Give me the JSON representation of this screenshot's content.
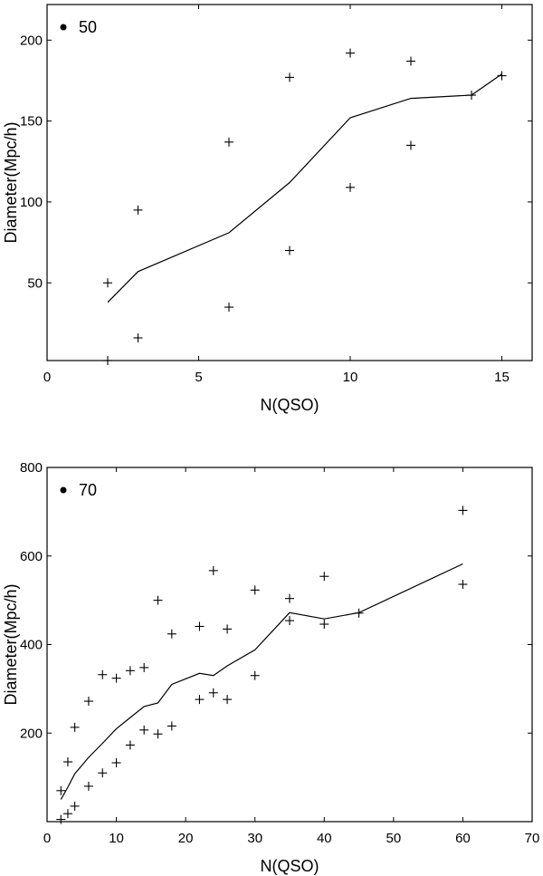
{
  "chart_data": [
    {
      "type": "scatter",
      "legend_label": "50",
      "legend_position": "top-left",
      "xlabel": "N(QSO)",
      "ylabel": "Diameter(Mpc/h)",
      "xlim": [
        0,
        16
      ],
      "ylim": [
        2,
        222
      ],
      "xticks": [
        0,
        5,
        10,
        15
      ],
      "yticks": [
        50,
        100,
        150,
        200
      ],
      "points": [
        [
          2,
          50
        ],
        [
          2,
          2
        ],
        [
          3,
          95
        ],
        [
          3,
          16
        ],
        [
          6,
          137
        ],
        [
          6,
          35
        ],
        [
          8,
          177
        ],
        [
          8,
          70
        ],
        [
          10,
          192
        ],
        [
          10,
          109
        ],
        [
          12,
          187
        ],
        [
          12,
          135
        ],
        [
          14,
          166
        ],
        [
          15,
          178
        ]
      ],
      "mean_line": [
        [
          2,
          38
        ],
        [
          3,
          57
        ],
        [
          6,
          81
        ],
        [
          8,
          112
        ],
        [
          10,
          152
        ],
        [
          12,
          164
        ],
        [
          14,
          166
        ],
        [
          15,
          179
        ]
      ]
    },
    {
      "type": "scatter",
      "legend_label": "70",
      "legend_position": "top-left",
      "xlabel": "N(QSO)",
      "ylabel": "Diameter(Mpc/h)",
      "xlim": [
        0,
        70
      ],
      "ylim": [
        0,
        800
      ],
      "xticks": [
        0,
        10,
        20,
        30,
        40,
        50,
        60,
        70
      ],
      "yticks": [
        200,
        400,
        600,
        800
      ],
      "points": [
        [
          2,
          70
        ],
        [
          2,
          5
        ],
        [
          3,
          135
        ],
        [
          3,
          18
        ],
        [
          4,
          213
        ],
        [
          4,
          35
        ],
        [
          6,
          272
        ],
        [
          6,
          80
        ],
        [
          8,
          332
        ],
        [
          8,
          110
        ],
        [
          10,
          324
        ],
        [
          10,
          133
        ],
        [
          12,
          341
        ],
        [
          12,
          173
        ],
        [
          14,
          348
        ],
        [
          14,
          207
        ],
        [
          16,
          500
        ],
        [
          16,
          198
        ],
        [
          18,
          424
        ],
        [
          18,
          216
        ],
        [
          22,
          441
        ],
        [
          22,
          276
        ],
        [
          24,
          567
        ],
        [
          24,
          291
        ],
        [
          26,
          435
        ],
        [
          26,
          276
        ],
        [
          30,
          523
        ],
        [
          30,
          330
        ],
        [
          35,
          504
        ],
        [
          35,
          454
        ],
        [
          40,
          554
        ],
        [
          40,
          446
        ],
        [
          45,
          471
        ],
        [
          60,
          703
        ],
        [
          60,
          536
        ]
      ],
      "mean_line": [
        [
          2,
          50
        ],
        [
          3,
          78
        ],
        [
          4,
          108
        ],
        [
          6,
          145
        ],
        [
          8,
          177
        ],
        [
          10,
          210
        ],
        [
          12,
          235
        ],
        [
          14,
          260
        ],
        [
          16,
          268
        ],
        [
          18,
          310
        ],
        [
          22,
          335
        ],
        [
          24,
          330
        ],
        [
          26,
          352
        ],
        [
          30,
          388
        ],
        [
          35,
          472
        ],
        [
          40,
          458
        ],
        [
          45,
          472
        ],
        [
          60,
          582
        ]
      ]
    }
  ]
}
